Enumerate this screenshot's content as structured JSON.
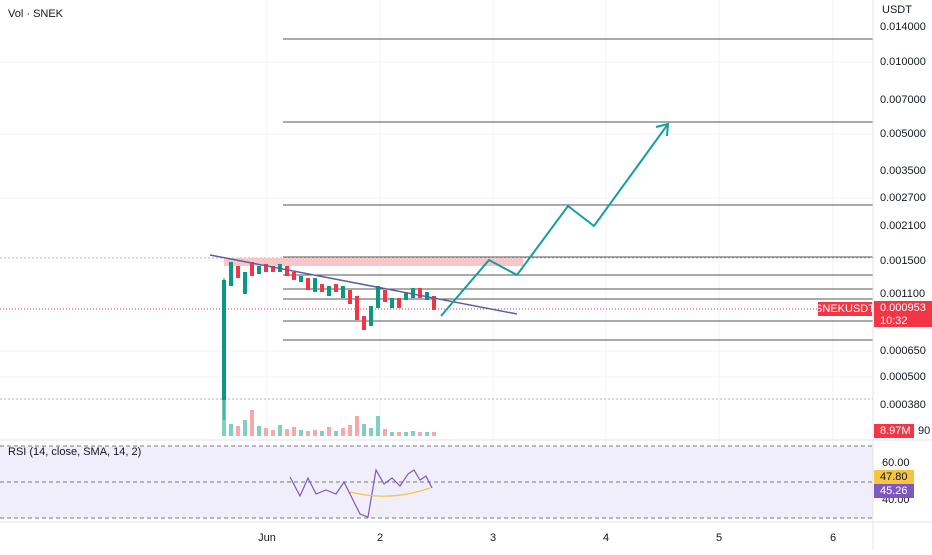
{
  "legend": {
    "volume": "Vol · SNEK",
    "rsi": "RSI (14, close, SMA, 14, 2)"
  },
  "price_axis": {
    "unit": "USDT",
    "labels": [
      "0.014000",
      "0.010000",
      "0.007000",
      "0.005000",
      "0.003500",
      "0.002700",
      "0.002100",
      "0.001500",
      "0.001100",
      "0.000650",
      "0.000500",
      "0.000380",
      "90"
    ],
    "symbol_badge": "SNEKUSDT",
    "price_badge": "0.000953",
    "countdown": "10:32",
    "volume_badge": "8.97M"
  },
  "rsi_axis": {
    "labels": [
      "60.00",
      "40.00"
    ],
    "rsi_badge": "47.80",
    "sma_badge": "45.26"
  },
  "time_axis": [
    "Jun",
    "2",
    "3",
    "4",
    "5",
    "6"
  ]
}
